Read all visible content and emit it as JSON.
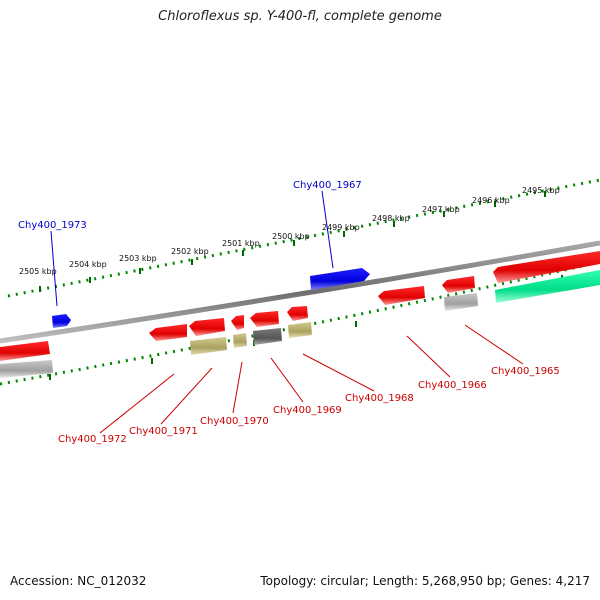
{
  "title": "Chloroflexus sp. Y-400-fl, complete genome",
  "footer": {
    "accession": "Accession: NC_012032",
    "summary": "Topology: circular; Length: 5,268,950 bp; Genes: 4,217"
  },
  "colors": {
    "backbone": "#8a8a8a",
    "gene_forward": "#0000ee",
    "gene_reverse": "#ee0000",
    "ruler_major": "#008800",
    "cds_khaki": "#b8b070",
    "cds_gray": "#666666",
    "cds_lightgray": "#b0b0b0",
    "cds_green": "#00e890",
    "label_blue": "#0000cc",
    "label_red": "#cc0000"
  },
  "upper_ruler": {
    "ticks": [
      "2505 kbp",
      "2504 kbp",
      "2503 kbp",
      "2502 kbp",
      "2501 kbp",
      "2500 kbp",
      "2499 kbp",
      "2498 kbp",
      "2497 kbp",
      "2496 kbp",
      "2495 kbp"
    ]
  },
  "gene_labels": {
    "forward": [
      "Chy400_1973",
      "Chy400_1967"
    ],
    "reverse": [
      "Chy400_1972",
      "Chy400_1971",
      "Chy400_1970",
      "Chy400_1969",
      "Chy400_1968",
      "Chy400_1966",
      "Chy400_1965"
    ]
  }
}
